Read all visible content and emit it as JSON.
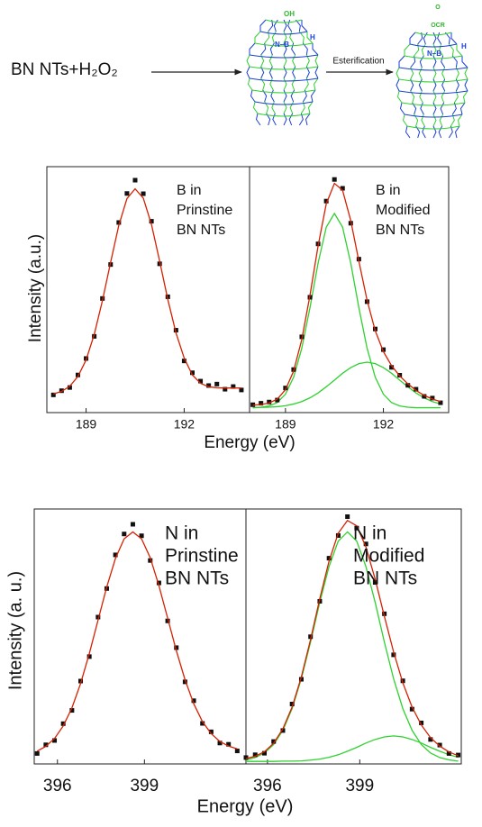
{
  "scheme": {
    "reactant": "BN NTs+H₂O₂",
    "reaction": "Esterification",
    "tube_1_labels": [
      "OH",
      "N–B",
      "H"
    ],
    "tube_2_labels": [
      "O",
      "OCR",
      "N–B",
      "H"
    ]
  },
  "chart_data": [
    {
      "type": "line",
      "annotation": [
        "B in",
        "Prinstine",
        "BN NTs"
      ],
      "xlabel": "Energy (eV)",
      "ylabel": "Intensity (a.u.)",
      "xlim": [
        187.8,
        194.0
      ],
      "xticks": [
        189,
        192
      ],
      "ylim": [
        0,
        100
      ],
      "x": [
        188.0,
        188.25,
        188.5,
        188.75,
        189.0,
        189.25,
        189.5,
        189.75,
        190.0,
        190.25,
        190.5,
        190.75,
        191.0,
        191.25,
        191.5,
        191.75,
        192.0,
        192.25,
        192.5,
        192.75,
        193.0,
        193.25,
        193.5,
        193.75
      ],
      "series": [
        {
          "style": "markers",
          "color": "#111111",
          "values": [
            7.2,
            8.9,
            10.2,
            15.3,
            22.0,
            31.0,
            46.4,
            60.2,
            77.3,
            89.1,
            94.5,
            89.0,
            77.8,
            60.5,
            47.1,
            33.5,
            21.0,
            16.2,
            12.8,
            11.0,
            11.6,
            9.5,
            10.6,
            9.2
          ]
        },
        {
          "style": "line",
          "color": "#d62000",
          "values": [
            7.6,
            8.6,
            10.7,
            14.7,
            21.4,
            31.8,
            45.5,
            61.1,
            76.1,
            87.0,
            91.0,
            87.2,
            76.5,
            61.6,
            46.0,
            32.4,
            22.2,
            15.3,
            11.9,
            10.5,
            10.1,
            10.0,
            10.0,
            10.0
          ]
        }
      ]
    },
    {
      "type": "line",
      "annotation": [
        "B in",
        "Modified",
        "BN NTs"
      ],
      "xlim": [
        187.9,
        194.0
      ],
      "xticks": [
        189,
        192
      ],
      "ylim": [
        0,
        100
      ],
      "x": [
        188.0,
        188.25,
        188.5,
        188.75,
        189.0,
        189.25,
        189.5,
        189.75,
        190.0,
        190.25,
        190.5,
        190.75,
        191.0,
        191.25,
        191.5,
        191.75,
        192.0,
        192.25,
        192.5,
        192.75,
        193.0,
        193.25,
        193.5,
        193.75
      ],
      "series": [
        {
          "style": "line",
          "color": "#2fd12f",
          "values": [
            2.0,
            2.2,
            2.7,
            4.1,
            7.5,
            14.4,
            26.2,
            42.6,
            60.8,
            75.4,
            81.0,
            75.4,
            60.8,
            42.6,
            26.2,
            14.4,
            7.5,
            4.1,
            2.7,
            2.2,
            2.0,
            2.0,
            2.0,
            2.0
          ]
        },
        {
          "style": "line",
          "color": "#2fd12f",
          "values": [
            2.0,
            2.1,
            2.2,
            2.4,
            2.8,
            3.5,
            4.5,
            6.0,
            8.0,
            10.5,
            13.2,
            16.0,
            18.3,
            19.9,
            20.5,
            19.9,
            18.3,
            16.0,
            13.2,
            10.5,
            8.0,
            6.0,
            4.5,
            3.5
          ]
        },
        {
          "style": "markers",
          "color": "#111111",
          "values": [
            3.2,
            3.8,
            4.3,
            5.1,
            10.0,
            17.5,
            30.8,
            46.9,
            68.6,
            86.0,
            94.8,
            91.2,
            77.0,
            62.4,
            45.1,
            34.0,
            25.6,
            18.4,
            15.2,
            11.1,
            9.5,
            6.6,
            5.9,
            4.0
          ]
        },
        {
          "style": "line",
          "color": "#d62000",
          "values": [
            3.0,
            3.3,
            3.9,
            5.5,
            9.3,
            16.9,
            29.7,
            47.6,
            67.8,
            84.9,
            93.2,
            90.4,
            78.1,
            61.5,
            45.7,
            33.3,
            24.8,
            19.1,
            14.9,
            11.7,
            9.0,
            7.0,
            5.5,
            4.5
          ]
        }
      ]
    },
    {
      "type": "line",
      "annotation": [
        "N in",
        "Prinstine",
        "BN NTs"
      ],
      "xlabel": "Energy (eV)",
      "ylabel": "Intensity (a. u.)",
      "xlim": [
        395.2,
        402.5
      ],
      "xticks": [
        396,
        399
      ],
      "ylim": [
        0,
        100
      ],
      "x": [
        395.3,
        395.6,
        395.9,
        396.2,
        396.5,
        396.8,
        397.1,
        397.4,
        397.7,
        398.0,
        398.3,
        398.6,
        398.9,
        399.2,
        399.5,
        399.8,
        400.1,
        400.4,
        400.7,
        401.0,
        401.3,
        401.6,
        401.9,
        402.2
      ],
      "series": [
        {
          "style": "markers",
          "color": "#111111",
          "values": [
            4.1,
            7.5,
            9.2,
            15.8,
            21.0,
            32.5,
            42.1,
            57.6,
            68.8,
            82.0,
            90.2,
            94.0,
            89.5,
            79.8,
            71.0,
            56.1,
            45.6,
            32.2,
            24.8,
            15.9,
            12.6,
            8.2,
            7.7,
            5.1
          ]
        },
        {
          "style": "line",
          "color": "#d62000",
          "values": [
            5.0,
            6.9,
            10.0,
            14.9,
            22.0,
            31.6,
            43.3,
            56.4,
            69.4,
            80.6,
            88.3,
            91.0,
            88.3,
            80.9,
            69.9,
            57.2,
            44.4,
            33.0,
            23.6,
            16.6,
            11.9,
            8.8,
            7.0,
            5.9
          ]
        }
      ]
    },
    {
      "type": "line",
      "annotation": [
        "N in",
        "Modified",
        "BN NTs"
      ],
      "xlim": [
        395.3,
        402.3
      ],
      "xticks": [
        396,
        399
      ],
      "ylim": [
        0,
        100
      ],
      "x": [
        395.3,
        395.6,
        395.9,
        396.2,
        396.5,
        396.8,
        397.1,
        397.4,
        397.7,
        398.0,
        398.3,
        398.6,
        398.9,
        399.2,
        399.5,
        399.8,
        400.1,
        400.4,
        400.7,
        401.0,
        401.3,
        401.6,
        401.9,
        402.2
      ],
      "series": [
        {
          "style": "line",
          "color": "#2fd12f",
          "values": [
            1.6,
            2.5,
            4.3,
            7.6,
            13.2,
            21.7,
            33.4,
            47.8,
            63.4,
            77.4,
            87.4,
            91.0,
            87.4,
            77.4,
            63.4,
            47.8,
            33.4,
            21.7,
            13.2,
            7.6,
            4.3,
            2.5,
            1.6,
            1.1
          ]
        },
        {
          "style": "line",
          "color": "#2fd12f",
          "values": [
            1.0,
            1.0,
            1.0,
            1.0,
            1.1,
            1.1,
            1.2,
            1.5,
            1.9,
            2.6,
            3.6,
            5.0,
            6.5,
            8.2,
            9.6,
            10.6,
            11.0,
            10.6,
            9.6,
            8.2,
            6.5,
            5.0,
            3.6,
            2.6
          ]
        },
        {
          "style": "markers",
          "color": "#111111",
          "values": [
            2.5,
            3.6,
            4.2,
            8.8,
            13.1,
            23.5,
            33.2,
            49.9,
            63.8,
            80.7,
            89.6,
            97.0,
            92.5,
            86.3,
            71.2,
            58.9,
            42.8,
            32.6,
            21.5,
            16.1,
            9.6,
            7.4,
            4.1,
            3.5
          ]
        },
        {
          "style": "line",
          "color": "#d62000",
          "values": [
            2.1,
            3.0,
            4.8,
            8.1,
            13.8,
            22.3,
            34.1,
            48.8,
            64.8,
            79.5,
            90.5,
            95.5,
            93.4,
            85.1,
            72.5,
            57.9,
            43.9,
            31.8,
            22.3,
            15.3,
            10.3,
            7.0,
            4.7,
            3.2
          ]
        }
      ]
    }
  ]
}
